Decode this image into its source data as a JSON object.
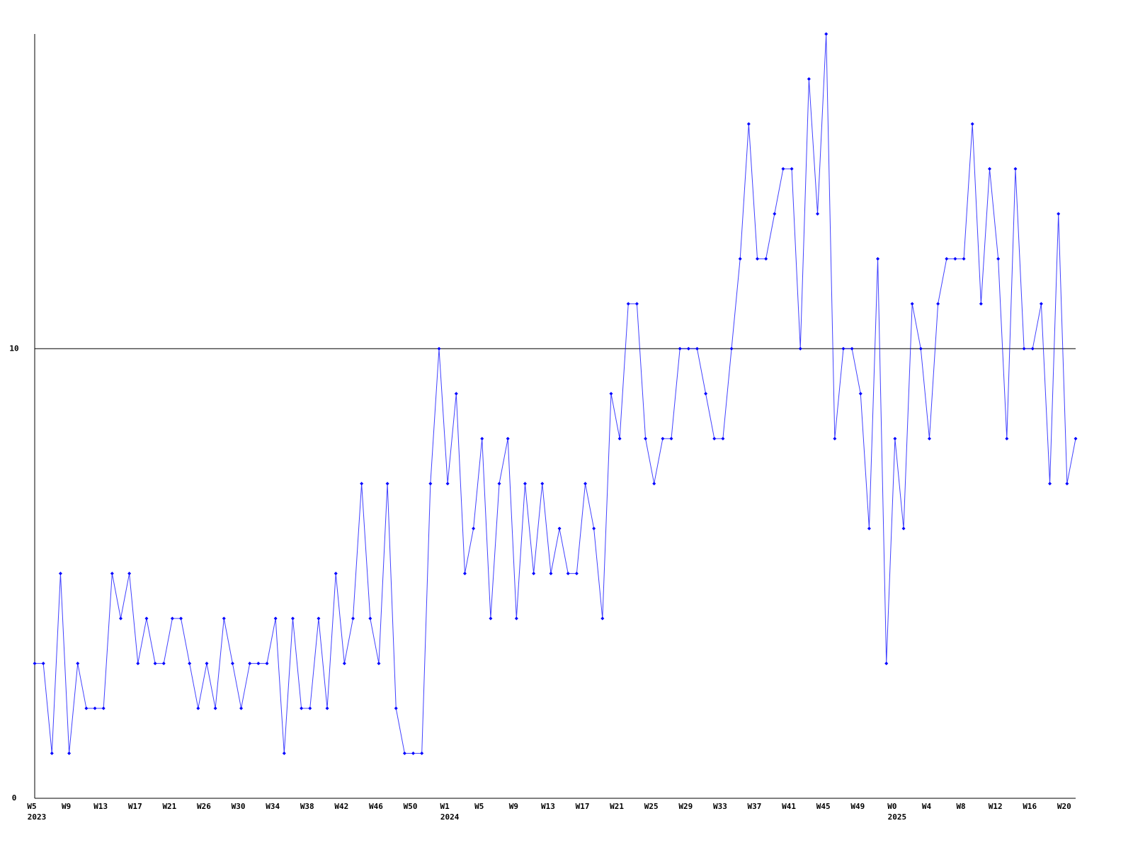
{
  "chart_data": {
    "type": "line",
    "categories": [
      "W5",
      null,
      null,
      null,
      "W9",
      null,
      null,
      null,
      "W13",
      null,
      null,
      null,
      "W17",
      null,
      null,
      null,
      "W21",
      null,
      null,
      null,
      "W26",
      null,
      null,
      null,
      "W30",
      null,
      null,
      null,
      "W34",
      null,
      null,
      null,
      "W38",
      null,
      null,
      null,
      "W42",
      null,
      null,
      null,
      "W46",
      null,
      null,
      null,
      "W50",
      null,
      null,
      null,
      "W1",
      null,
      null,
      null,
      "W5",
      null,
      null,
      null,
      "W9",
      null,
      null,
      null,
      "W13",
      null,
      null,
      null,
      "W17",
      null,
      null,
      null,
      "W21",
      null,
      null,
      null,
      "W25",
      null,
      null,
      null,
      "W29",
      null,
      null,
      null,
      "W33",
      null,
      null,
      null,
      "W37",
      null,
      null,
      null,
      "W41",
      null,
      null,
      null,
      "W45",
      null,
      null,
      null,
      "W49",
      null,
      null,
      null,
      "W0",
      null,
      null,
      null,
      "W4",
      null,
      null,
      null,
      "W8",
      null,
      null,
      null,
      "W12",
      null,
      null,
      null,
      "W16",
      null,
      null,
      null,
      "W20",
      null
    ],
    "year_labels": [
      "2023",
      null,
      null,
      null,
      null,
      null,
      null,
      null,
      null,
      null,
      null,
      null,
      null,
      null,
      null,
      null,
      null,
      null,
      null,
      null,
      null,
      null,
      null,
      null,
      null,
      null,
      null,
      null,
      null,
      null,
      null,
      null,
      null,
      null,
      null,
      null,
      null,
      null,
      null,
      null,
      null,
      null,
      null,
      null,
      null,
      null,
      null,
      null,
      "2024",
      null,
      null,
      null,
      null,
      null,
      null,
      null,
      null,
      null,
      null,
      null,
      null,
      null,
      null,
      null,
      null,
      null,
      null,
      null,
      null,
      null,
      null,
      null,
      null,
      null,
      null,
      null,
      null,
      null,
      null,
      null,
      null,
      null,
      null,
      null,
      null,
      null,
      null,
      null,
      null,
      null,
      null,
      null,
      null,
      null,
      null,
      null,
      null,
      null,
      null,
      null,
      "2025",
      null,
      null,
      null,
      null,
      null,
      null,
      null,
      null,
      null,
      null,
      null,
      null,
      null,
      null,
      null,
      null,
      null,
      null,
      null,
      null,
      null
    ],
    "series": [
      {
        "color": "#0000ff",
        "values": [
          3,
          3,
          1,
          5,
          1,
          3,
          2,
          2,
          2,
          5,
          4,
          5,
          3,
          4,
          3,
          3,
          4,
          4,
          3,
          2,
          3,
          2,
          4,
          3,
          2,
          3,
          3,
          3,
          4,
          1,
          4,
          2,
          2,
          4,
          2,
          5,
          3,
          4,
          7,
          4,
          3,
          7,
          2,
          1,
          1,
          1,
          7,
          10,
          7,
          9,
          5,
          6,
          8,
          4,
          7,
          8,
          4,
          7,
          5,
          7,
          5,
          6,
          5,
          5,
          7,
          6,
          4,
          9,
          8,
          11,
          11,
          8,
          7,
          8,
          8,
          10,
          10,
          10,
          9,
          8,
          8,
          10,
          12,
          15,
          12,
          12,
          13,
          14,
          14,
          10,
          16,
          13,
          17,
          8,
          10,
          10,
          9,
          6,
          12,
          3,
          8,
          6,
          11,
          10,
          8,
          11,
          12,
          12,
          12,
          15,
          11,
          14,
          12,
          8,
          14,
          10,
          10,
          11,
          7,
          13,
          7,
          8
        ]
      }
    ],
    "ylim": [
      0,
      17
    ],
    "yticks": [
      0,
      10
    ],
    "grid": true
  }
}
